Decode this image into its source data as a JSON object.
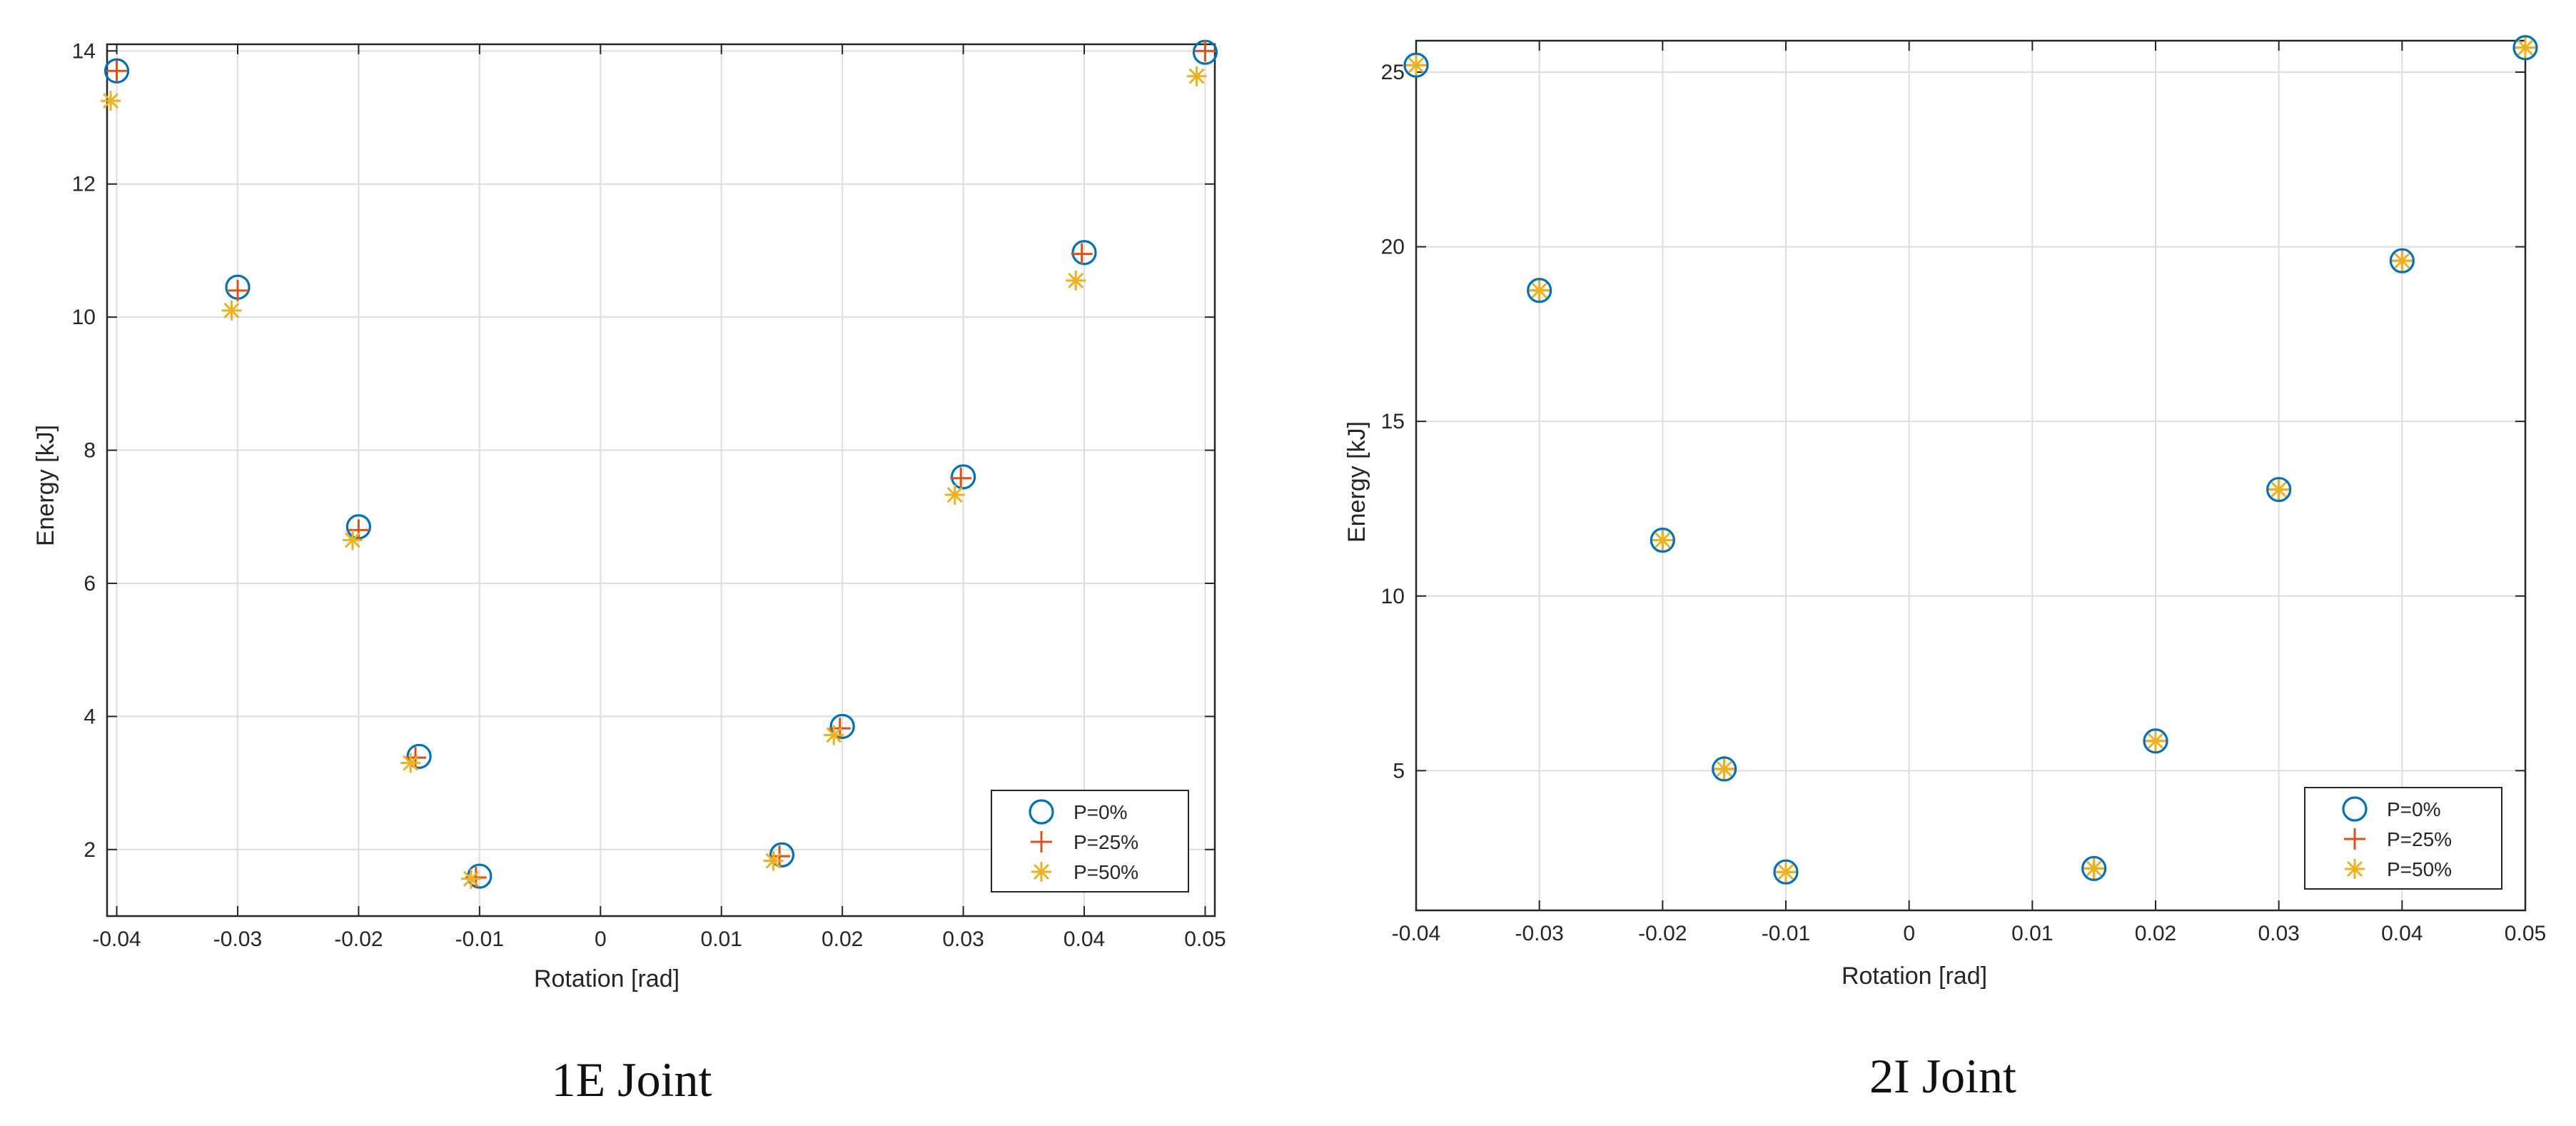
{
  "colors": {
    "series_0": "#0072BD",
    "series_25": "#D95319",
    "series_50": "#EDB120",
    "grid": "#dedede",
    "axis": "#262626"
  },
  "chart_data": [
    {
      "type": "scatter",
      "caption": "1E Joint",
      "xlabel": "Rotation [rad]",
      "ylabel": "Energy [kJ]",
      "xlim": [
        -0.0408,
        0.0508
      ],
      "ylim": [
        1.0,
        14.1
      ],
      "xticks": [
        -0.04,
        -0.03,
        -0.02,
        -0.01,
        0,
        0.01,
        0.02,
        0.03,
        0.04,
        0.05
      ],
      "xtick_labels": [
        "-0.04",
        "-0.03",
        "-0.02",
        "-0.01",
        "0",
        "0.01",
        "0.02",
        "0.03",
        "0.04",
        "0.05"
      ],
      "yticks": [
        2,
        4,
        6,
        8,
        10,
        12,
        14
      ],
      "ytick_labels": [
        "2",
        "4",
        "6",
        "8",
        "10",
        "12",
        "14"
      ],
      "grid": true,
      "legend_position": "bottom-right",
      "series": [
        {
          "name": "P=0%",
          "marker": "circle",
          "x": [
            -0.04,
            -0.03,
            -0.02,
            -0.015,
            -0.01,
            0.015,
            0.02,
            0.03,
            0.04,
            0.05
          ],
          "y": [
            13.7,
            10.45,
            6.85,
            3.4,
            1.6,
            1.92,
            3.85,
            7.6,
            10.97,
            13.98
          ]
        },
        {
          "name": "P=25%",
          "marker": "plus",
          "x": [
            -0.04,
            -0.03,
            -0.02,
            -0.0153,
            -0.0103,
            0.0148,
            0.0198,
            0.0298,
            0.0398,
            0.05
          ],
          "y": [
            13.7,
            10.4,
            6.8,
            3.38,
            1.58,
            1.9,
            3.82,
            7.58,
            10.95,
            14.0
          ]
        },
        {
          "name": "P=50%",
          "marker": "asterisk",
          "x": [
            -0.0405,
            -0.0305,
            -0.0205,
            -0.0157,
            -0.0107,
            0.0143,
            0.0193,
            0.0293,
            0.0393,
            0.0493
          ],
          "y": [
            13.25,
            10.1,
            6.65,
            3.3,
            1.56,
            1.83,
            3.72,
            7.33,
            10.55,
            13.62
          ]
        }
      ]
    },
    {
      "type": "scatter",
      "caption": "2I Joint",
      "xlabel": "Rotation [rad]",
      "ylabel": "Energy [kJ]",
      "xlim": [
        -0.04,
        0.05
      ],
      "ylim": [
        1.0,
        25.9
      ],
      "xticks": [
        -0.04,
        -0.03,
        -0.02,
        -0.01,
        0,
        0.01,
        0.02,
        0.03,
        0.04,
        0.05
      ],
      "xtick_labels": [
        "-0.04",
        "-0.03",
        "-0.02",
        "-0.01",
        "0",
        "0.01",
        "0.02",
        "0.03",
        "0.04",
        "0.05"
      ],
      "yticks": [
        5,
        10,
        15,
        20,
        25
      ],
      "ytick_labels": [
        "5",
        "10",
        "15",
        "20",
        "25"
      ],
      "grid": true,
      "legend_position": "bottom-right",
      "series": [
        {
          "name": "P=0%",
          "marker": "circle",
          "x": [
            -0.04,
            -0.03,
            -0.02,
            -0.015,
            -0.01,
            0.015,
            0.02,
            0.03,
            0.04,
            0.05
          ],
          "y": [
            25.2,
            18.75,
            11.6,
            5.05,
            2.1,
            2.2,
            5.85,
            13.05,
            19.6,
            25.7
          ]
        },
        {
          "name": "P=25%",
          "marker": "plus",
          "x": [
            -0.04,
            -0.03,
            -0.02,
            -0.015,
            -0.01,
            0.015,
            0.02,
            0.03,
            0.04,
            0.05
          ],
          "y": [
            25.2,
            18.75,
            11.6,
            5.05,
            2.1,
            2.2,
            5.85,
            13.05,
            19.6,
            25.7
          ]
        },
        {
          "name": "P=50%",
          "marker": "asterisk",
          "x": [
            -0.04,
            -0.03,
            -0.02,
            -0.015,
            -0.01,
            0.015,
            0.02,
            0.03,
            0.04,
            0.05
          ],
          "y": [
            25.2,
            18.75,
            11.6,
            5.05,
            2.1,
            2.2,
            5.85,
            13.05,
            19.6,
            25.7
          ]
        }
      ]
    }
  ]
}
